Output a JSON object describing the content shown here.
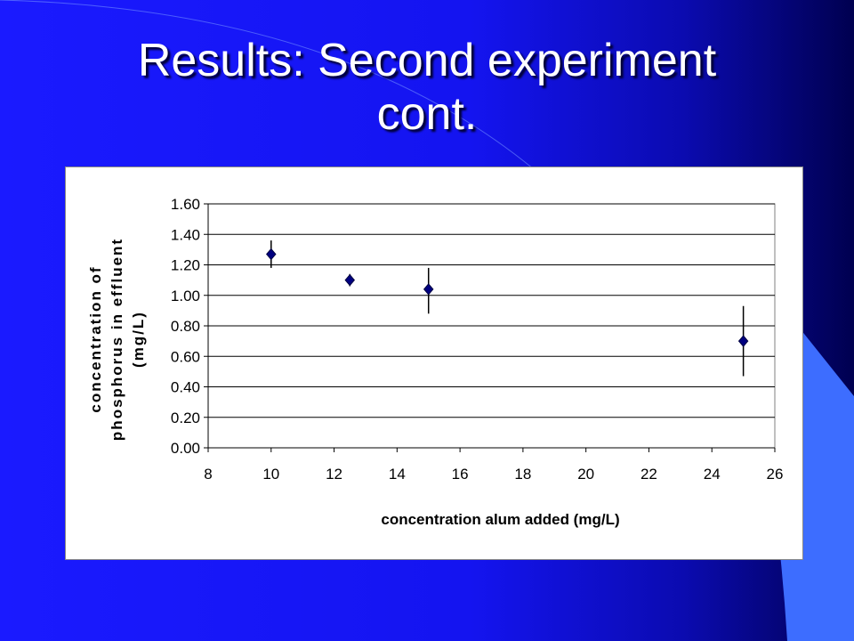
{
  "slide": {
    "title_line1": "Results: Second experiment",
    "title_line2": "cont."
  },
  "colors": {
    "background": "#1414f0",
    "accent_shape": "#3d6dff",
    "marker": "#000080",
    "title_text": "#ffffff"
  },
  "chart_data": {
    "type": "scatter",
    "title": "",
    "xlabel": "concentration alum added (mg/L)",
    "ylabel_lines": [
      "concentration of",
      "phosphorus in effluent",
      "(mg/L)"
    ],
    "xlim": [
      8,
      26
    ],
    "ylim": [
      0,
      1.6
    ],
    "x_ticks": [
      "8",
      "10",
      "12",
      "14",
      "16",
      "18",
      "20",
      "22",
      "24",
      "26"
    ],
    "y_ticks": [
      "0.00",
      "0.20",
      "0.40",
      "0.60",
      "0.80",
      "1.00",
      "1.20",
      "1.40",
      "1.60"
    ],
    "grid": "horizontal",
    "legend": "none",
    "marker": "diamond",
    "points": [
      {
        "x": 10,
        "y": 1.27,
        "err_low": 1.18,
        "err_high": 1.36
      },
      {
        "x": 12.5,
        "y": 1.1,
        "err_low": 1.06,
        "err_high": 1.14
      },
      {
        "x": 15,
        "y": 1.04,
        "err_low": 0.88,
        "err_high": 1.18
      },
      {
        "x": 25,
        "y": 0.7,
        "err_low": 0.47,
        "err_high": 0.93
      }
    ]
  }
}
